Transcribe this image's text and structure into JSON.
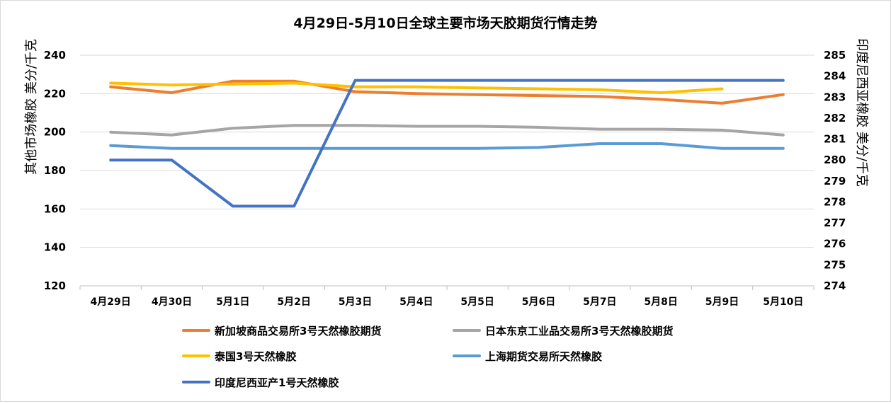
{
  "chart_data": {
    "type": "line",
    "title": "4月29日-5月10日全球主要市场天胶期货行情走势",
    "ylabel_left": "其他市场橡胶  美分/千克",
    "ylabel_right": "印度尼西亚橡胶  美分/千克",
    "ylim_left": [
      120,
      240
    ],
    "yticks_left": [
      120,
      140,
      160,
      180,
      200,
      220,
      240
    ],
    "ylim_right": [
      274,
      285
    ],
    "yticks_right": [
      274,
      275,
      276,
      277,
      278,
      279,
      280,
      281,
      282,
      283,
      284,
      285
    ],
    "categories": [
      "4月29日",
      "4月30日",
      "5月1日",
      "5月2日",
      "5月3日",
      "5月4日",
      "5月5日",
      "5月6日",
      "5月7日",
      "5月8日",
      "5月9日",
      "5月10日"
    ],
    "grid": "horizontal",
    "legend_position": "bottom",
    "series": [
      {
        "name": "新加坡商品交易所3号天然橡胶期货",
        "axis": "left",
        "color": "#ED7D31",
        "values": [
          223.5,
          220.5,
          226.5,
          226.5,
          221,
          220,
          219.5,
          219,
          218.5,
          217,
          215,
          219.5
        ]
      },
      {
        "name": "日本东京工业品交易所3号天然橡胶期货",
        "axis": "left",
        "color": "#A5A5A5",
        "values": [
          200,
          198.5,
          202,
          203.5,
          203.5,
          203,
          203,
          202.5,
          201.5,
          201.5,
          201,
          198.5
        ]
      },
      {
        "name": "泰国3号天然橡胶",
        "axis": "left",
        "color": "#FFC000",
        "values": [
          225.5,
          224.5,
          225,
          225.5,
          223.5,
          223.5,
          223,
          222.5,
          222,
          220.5,
          222.5,
          null
        ]
      },
      {
        "name": "上海期货交易所天然橡胶",
        "axis": "left",
        "color": "#5B9BD5",
        "values": [
          193,
          191.5,
          191.5,
          191.5,
          191.5,
          191.5,
          191.5,
          192,
          194,
          194,
          191.5,
          191.5
        ]
      },
      {
        "name": "印度尼西亚产1号天然橡胶",
        "axis": "right",
        "color": "#4472C4",
        "values": [
          280,
          280,
          277.8,
          277.8,
          283.8,
          283.8,
          283.8,
          283.8,
          283.8,
          283.8,
          283.8,
          283.8
        ]
      }
    ]
  }
}
